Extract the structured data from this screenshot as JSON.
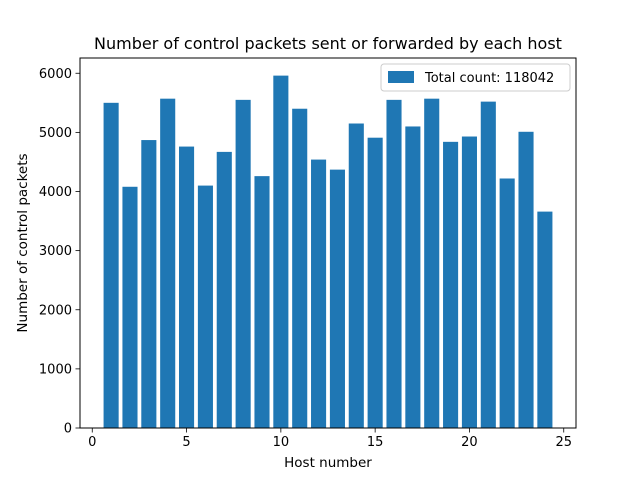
{
  "chart_data": {
    "type": "bar",
    "title": "Number of control packets sent or forwarded by each host",
    "xlabel": "Host number",
    "ylabel": "Number of control packets",
    "x": [
      1,
      2,
      3,
      4,
      5,
      6,
      7,
      8,
      9,
      10,
      11,
      12,
      13,
      14,
      15,
      16,
      17,
      18,
      19,
      20,
      21,
      22,
      23,
      24
    ],
    "values": [
      5500,
      4080,
      4870,
      5570,
      4760,
      4100,
      4670,
      5550,
      4260,
      5960,
      5400,
      4540,
      4370,
      5150,
      4910,
      5550,
      5100,
      5570,
      4840,
      4930,
      5520,
      4220,
      5010,
      3660
    ],
    "xlim": [
      -0.65,
      25.65
    ],
    "ylim": [
      0,
      6258
    ],
    "xticks": [
      0,
      5,
      10,
      15,
      20,
      25
    ],
    "xtick_labels": [
      "0",
      "5",
      "10",
      "15",
      "20",
      "25"
    ],
    "yticks": [
      0,
      1000,
      2000,
      3000,
      4000,
      5000,
      6000
    ],
    "ytick_labels": [
      "0",
      "1000",
      "2000",
      "3000",
      "4000",
      "5000",
      "6000"
    ],
    "legend": {
      "label": "Total count: 118042",
      "location": "top-right"
    },
    "bar_color": "#1f77b4",
    "grid": false
  }
}
